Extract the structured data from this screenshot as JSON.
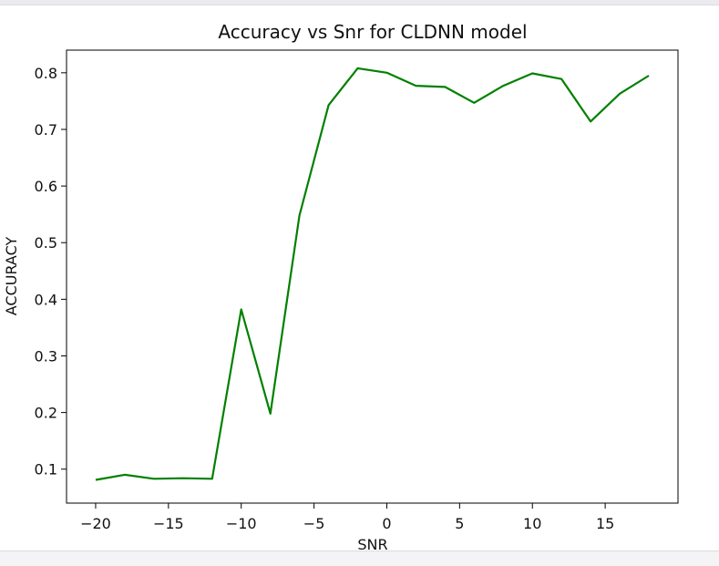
{
  "chart_data": {
    "type": "line",
    "title": "Accuracy vs Snr for CLDNN model",
    "xlabel": "SNR",
    "ylabel": "ACCURACY",
    "xlim": [
      -22,
      20
    ],
    "ylim": [
      0.04,
      0.84
    ],
    "xticks": [
      -20,
      -15,
      -10,
      -5,
      0,
      5,
      10,
      15
    ],
    "xtick_labels": [
      "−20",
      "−15",
      "−10",
      "−5",
      "0",
      "5",
      "10",
      "15"
    ],
    "yticks": [
      0.1,
      0.2,
      0.3,
      0.4,
      0.5,
      0.6,
      0.7,
      0.8
    ],
    "ytick_labels": [
      "0.1",
      "0.2",
      "0.3",
      "0.4",
      "0.5",
      "0.6",
      "0.7",
      "0.8"
    ],
    "grid": false,
    "legend": null,
    "series": [
      {
        "color": "#008000",
        "x": [
          -20,
          -18,
          -16,
          -14,
          -12,
          -10,
          -8,
          -6,
          -4,
          -2,
          0,
          2,
          4,
          6,
          8,
          10,
          12,
          14,
          16,
          18
        ],
        "y": [
          0.081,
          0.09,
          0.083,
          0.084,
          0.083,
          0.382,
          0.198,
          0.548,
          0.743,
          0.808,
          0.8,
          0.777,
          0.775,
          0.747,
          0.777,
          0.799,
          0.789,
          0.714,
          0.763,
          0.795
        ]
      }
    ]
  }
}
